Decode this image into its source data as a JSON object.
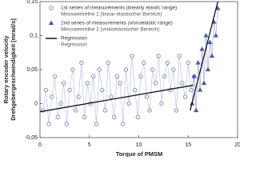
{
  "chart_data": {
    "type": "scatter-line",
    "x_label": "Torque of PMSM",
    "y_label": "Rotary encoder velocity",
    "y_label_de": "Drehgebergeschwindigkeit [mrad/s]",
    "xlim": [
      0,
      20
    ],
    "xticks": [
      0,
      5,
      10,
      15,
      20
    ],
    "ylim": [
      -0.05,
      0.15
    ],
    "yticks": [
      {
        "value": -0.05,
        "label": "-0,05"
      },
      0,
      {
        "value": 0.05,
        "label": "0,05"
      },
      {
        "value": 0.1,
        "label": "0,1"
      },
      {
        "value": 0.15,
        "label": "0,15"
      }
    ],
    "grid": false,
    "legend": "upper left",
    "series": [
      {
        "name": "1st series of measurements (linearly elastic range)",
        "legend_note": "Messwertreihe 1 (linear elastischer Bereich)",
        "marker": "circle",
        "color": "#7f8cc4",
        "x": [
          0.3,
          0.6,
          0.9,
          1.2,
          1.5,
          1.8,
          2.1,
          2.4,
          2.7,
          3.0,
          3.3,
          3.6,
          3.9,
          4.2,
          4.5,
          4.8,
          5.1,
          5.4,
          5.7,
          6.0,
          6.3,
          6.6,
          6.9,
          7.2,
          7.5,
          7.8,
          8.1,
          8.4,
          8.7,
          9.0,
          9.3,
          9.6,
          9.9,
          10.2,
          10.5,
          10.8,
          11.1,
          11.4,
          11.7,
          12.0,
          12.3,
          12.6,
          12.9,
          13.2,
          13.5,
          13.8,
          14.1,
          14.4,
          14.7,
          15.0,
          15.3,
          15.6
        ],
        "values": [
          -0.01,
          0.02,
          -0.03,
          0.01,
          0.04,
          -0.02,
          0.0,
          0.03,
          -0.03,
          0.02,
          0.05,
          -0.01,
          0.01,
          0.06,
          -0.02,
          0.03,
          0.0,
          0.04,
          -0.03,
          0.05,
          0.02,
          -0.01,
          0.06,
          0.01,
          -0.02,
          0.04,
          0.03,
          -0.03,
          0.05,
          0.0,
          0.07,
          0.02,
          -0.02,
          0.04,
          0.06,
          0.01,
          -0.01,
          0.05,
          0.03,
          0.07,
          0.0,
          0.04,
          0.06,
          0.02,
          0.05,
          -0.01,
          0.07,
          0.03,
          0.01,
          0.06,
          0.02,
          0.04
        ]
      },
      {
        "name": "2nd series of measurements (viscoelastic range)",
        "legend_note": "Messwertreihe 2 (viskoelastischer Bereich)",
        "marker": "triangle",
        "color": "#4a58a8",
        "x": [
          15.4,
          15.6,
          15.8,
          16.0,
          16.2,
          16.4,
          16.6,
          16.8,
          17.0,
          17.2,
          17.4,
          17.6,
          17.8,
          18.0
        ],
        "values": [
          0.0,
          0.04,
          -0.01,
          0.06,
          0.02,
          0.08,
          0.03,
          0.1,
          0.05,
          0.09,
          0.07,
          0.12,
          0.1,
          0.14
        ]
      },
      {
        "name": "Regression",
        "legend_note": "Regression",
        "marker": "line",
        "color": "#111111",
        "x": [
          0,
          15.5,
          15.5,
          15.2,
          18.0
        ],
        "values": [
          -0.012,
          0.027,
          null,
          -0.01,
          0.15
        ]
      }
    ]
  }
}
